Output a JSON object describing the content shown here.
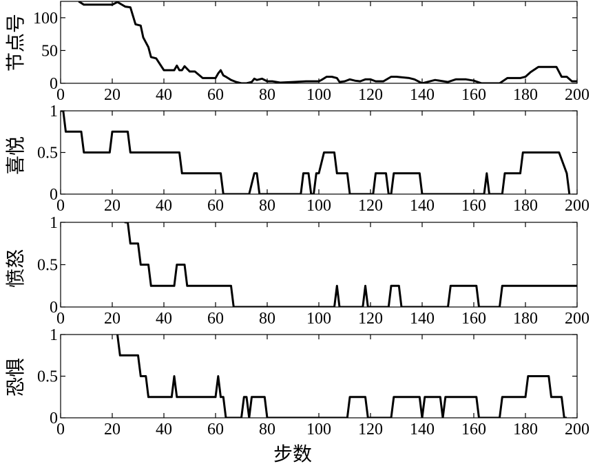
{
  "chart_data": [
    {
      "type": "line",
      "ylabel": "节点号",
      "xlim": [
        0,
        200
      ],
      "ylim": [
        0,
        125
      ],
      "xticks": [
        0,
        20,
        40,
        60,
        80,
        100,
        120,
        140,
        160,
        180,
        200
      ],
      "yticks": [
        0,
        50,
        100
      ],
      "series": [
        {
          "x": [
            7,
            9,
            20,
            22,
            25,
            27,
            29,
            31,
            32,
            34,
            35,
            37,
            40,
            44,
            45,
            46,
            47,
            48,
            50,
            52,
            55,
            58,
            60,
            61,
            62,
            63,
            64,
            66,
            68,
            70,
            72,
            74,
            75,
            76,
            78,
            80,
            82,
            85,
            90,
            95,
            100,
            101,
            103,
            105,
            107,
            108,
            110,
            112,
            114,
            116,
            118,
            120,
            122,
            125,
            128,
            130,
            135,
            137,
            140,
            142,
            145,
            150,
            153,
            157,
            160,
            163,
            166,
            170,
            173,
            175,
            178,
            180,
            182,
            185,
            190,
            192,
            194,
            196,
            198,
            200
          ],
          "y": [
            125,
            120,
            120,
            124,
            117,
            116,
            90,
            88,
            70,
            55,
            40,
            38,
            20,
            20,
            27,
            20,
            20,
            26,
            18,
            18,
            8,
            8,
            8,
            15,
            20,
            12,
            10,
            5,
            2,
            0,
            0,
            2,
            7,
            5,
            7,
            3,
            3,
            1,
            2,
            3,
            3,
            5,
            10,
            10,
            8,
            2,
            3,
            6,
            4,
            3,
            6,
            6,
            3,
            3,
            10,
            10,
            8,
            6,
            0,
            2,
            5,
            2,
            6,
            6,
            4,
            0,
            0,
            0,
            8,
            8,
            8,
            10,
            17,
            25,
            25,
            25,
            10,
            10,
            3,
            3
          ]
        }
      ]
    },
    {
      "type": "line",
      "ylabel": "喜悦",
      "xlim": [
        0,
        200
      ],
      "ylim": [
        0,
        1
      ],
      "xticks": [
        0,
        20,
        40,
        60,
        80,
        100,
        120,
        140,
        160,
        180,
        200
      ],
      "yticks": [
        0,
        0.5,
        1
      ],
      "series": [
        {
          "x": [
            0,
            1,
            2,
            7,
            8,
            9,
            10,
            19,
            20,
            21,
            26,
            27,
            28,
            46,
            47,
            48,
            61,
            62,
            63,
            73,
            75,
            76,
            77,
            93,
            94,
            96,
            97,
            98,
            99,
            100,
            102,
            104,
            106,
            107,
            108,
            109,
            110,
            111,
            112,
            121,
            122,
            124,
            126,
            127,
            128,
            129,
            130,
            138,
            139,
            140,
            164,
            165,
            166,
            171,
            172,
            178,
            179,
            180,
            192,
            193,
            196,
            197
          ],
          "y": [
            1,
            1,
            0.75,
            0.75,
            0.75,
            0.5,
            0.5,
            0.5,
            0.75,
            0.75,
            0.75,
            0.5,
            0.5,
            0.5,
            0.25,
            0.25,
            0.25,
            0.25,
            0,
            0,
            0.25,
            0.25,
            0,
            0,
            0.25,
            0.25,
            0,
            0,
            0.25,
            0.25,
            0.5,
            0.5,
            0.5,
            0.25,
            0.25,
            0.25,
            0.25,
            0.25,
            0,
            0,
            0.25,
            0.25,
            0.25,
            0,
            0,
            0.25,
            0.25,
            0.25,
            0.25,
            0,
            0,
            0.25,
            0,
            0,
            0.25,
            0.25,
            0.5,
            0.5,
            0.5,
            0.5,
            0.25,
            0
          ]
        }
      ]
    },
    {
      "type": "line",
      "ylabel": "愤怒",
      "xlim": [
        0,
        200
      ],
      "ylim": [
        0,
        1
      ],
      "xticks": [
        0,
        20,
        40,
        60,
        80,
        100,
        120,
        140,
        160,
        180,
        200
      ],
      "yticks": [
        0,
        0.5,
        1
      ],
      "series": [
        {
          "x": [
            24,
            25,
            26,
            27,
            28,
            30,
            31,
            32,
            34,
            35,
            36,
            44,
            45,
            46,
            48,
            49,
            50,
            51,
            65,
            66,
            67,
            106,
            107,
            108,
            117,
            118,
            119,
            127,
            128,
            131,
            132,
            150,
            151,
            152,
            160,
            161,
            162,
            170,
            171,
            172,
            173,
            200
          ],
          "y": [
            1.2,
            1,
            1,
            0.75,
            0.75,
            0.75,
            0.5,
            0.5,
            0.5,
            0.25,
            0.25,
            0.25,
            0.5,
            0.5,
            0.5,
            0.25,
            0.25,
            0.25,
            0.25,
            0.25,
            0,
            0,
            0.25,
            0,
            0,
            0.25,
            0,
            0,
            0.25,
            0.25,
            0,
            0,
            0.25,
            0.25,
            0.25,
            0.25,
            0,
            0,
            0.25,
            0.25,
            0.25,
            0.25
          ]
        }
      ]
    },
    {
      "type": "line",
      "ylabel": "恐惧",
      "xlabel": "步数",
      "xlim": [
        0,
        200
      ],
      "ylim": [
        0,
        1
      ],
      "xticks": [
        0,
        20,
        40,
        60,
        80,
        100,
        120,
        140,
        160,
        180,
        200
      ],
      "yticks": [
        0,
        0.5,
        1
      ],
      "series": [
        {
          "x": [
            21,
            22,
            23,
            30,
            31,
            32,
            33,
            34,
            35,
            43,
            44,
            45,
            60,
            61,
            62,
            63,
            64,
            70,
            71,
            72,
            73,
            74,
            75,
            79,
            80,
            111,
            112,
            113,
            118,
            119,
            128,
            129,
            130,
            139,
            140,
            141,
            142,
            147,
            148,
            149,
            150,
            160,
            161,
            162,
            170,
            171,
            172,
            180,
            181,
            182,
            189,
            190,
            191,
            194,
            195,
            196
          ],
          "y": [
            1.2,
            1,
            0.75,
            0.75,
            0.5,
            0.5,
            0.5,
            0.25,
            0.25,
            0.25,
            0.5,
            0.25,
            0.25,
            0.5,
            0.25,
            0.25,
            0,
            0,
            0.25,
            0.25,
            0,
            0.25,
            0.25,
            0.25,
            0,
            0,
            0.25,
            0.25,
            0.25,
            0,
            0,
            0.25,
            0.25,
            0.25,
            0,
            0.25,
            0.25,
            0.25,
            0,
            0.25,
            0.25,
            0.25,
            0.25,
            0,
            0,
            0.25,
            0.25,
            0.25,
            0.5,
            0.5,
            0.5,
            0.25,
            0.25,
            0.25,
            0,
            0
          ]
        }
      ]
    }
  ]
}
